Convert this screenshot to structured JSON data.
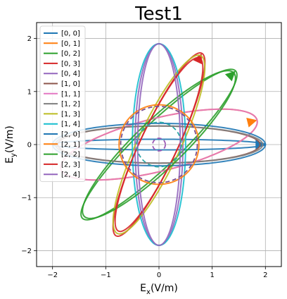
{
  "chart_data": {
    "type": "line",
    "title": "Test1",
    "xlabel": {
      "base": "E",
      "sub": "x",
      "unit": "(V/m)"
    },
    "ylabel": {
      "base": "E",
      "sub": "y",
      "unit": "(V/m)"
    },
    "xlim": [
      -2.3,
      2.3
    ],
    "ylim": [
      -2.3,
      2.3
    ],
    "xticks": [
      -2,
      -1,
      0,
      1,
      2
    ],
    "yticks": [
      -2,
      -1,
      0,
      1,
      2
    ],
    "grid": true,
    "legend_position": "upper-left",
    "series": [
      {
        "name": "[0, 0]",
        "color": "#1f77b4",
        "a": 2.0,
        "b": 0.1,
        "theta_deg": 0,
        "style": "solid",
        "arrow": true
      },
      {
        "name": "[0, 1]",
        "color": "#ff7f0e",
        "a": 1.9,
        "b": 0.5,
        "theta_deg": 14,
        "style": "solid",
        "arrow": true
      },
      {
        "name": "[0, 2]",
        "color": "#2ca02c",
        "a": 2.0,
        "b": 0.4,
        "theta_deg": 44,
        "style": "solid",
        "arrow": true
      },
      {
        "name": "[0, 3]",
        "color": "#d62728",
        "a": 1.9,
        "b": 0.35,
        "theta_deg": 65,
        "style": "solid",
        "arrow": true
      },
      {
        "name": "[0, 4]",
        "color": "#9467bd",
        "a": 1.9,
        "b": 0.45,
        "theta_deg": 90,
        "style": "solid",
        "arrow": false
      },
      {
        "name": "[1, 0]",
        "color": "#8c564b",
        "a": 1.9,
        "b": 0.35,
        "theta_deg": 0,
        "style": "solid",
        "arrow": false
      },
      {
        "name": "[1, 1]",
        "color": "#e377c2",
        "a": 1.9,
        "b": 0.5,
        "theta_deg": 14,
        "style": "solid",
        "arrow": false
      },
      {
        "name": "[1, 2]",
        "color": "#7f7f7f",
        "a": 1.95,
        "b": 0.35,
        "theta_deg": 0,
        "style": "solid",
        "arrow": false
      },
      {
        "name": "[1, 3]",
        "color": "#bcbd22",
        "a": 1.85,
        "b": 0.4,
        "theta_deg": 65,
        "style": "solid",
        "arrow": false
      },
      {
        "name": "[1, 4]",
        "color": "#17becf",
        "a": 1.9,
        "b": 0.5,
        "theta_deg": 90,
        "style": "solid",
        "arrow": false
      },
      {
        "name": "[2, 0]",
        "color": "#1f77b4",
        "a": 2.0,
        "b": 0.4,
        "theta_deg": 0,
        "style": "solid",
        "arrow": false
      },
      {
        "name": "[2, 1]",
        "color": "#ff7f0e",
        "a": 0.75,
        "b": 0.75,
        "theta_deg": 0,
        "style": "solid",
        "arrow": false
      },
      {
        "name": "[2, 2]",
        "color": "#2ca02c",
        "a": 1.95,
        "b": 0.45,
        "theta_deg": 44,
        "style": "solid",
        "arrow": false
      },
      {
        "name": "[2, 3]",
        "color": "#d62728",
        "a": 1.8,
        "b": 0.35,
        "theta_deg": 65,
        "style": "solid",
        "arrow": false
      },
      {
        "name": "[2, 4]",
        "color": "#9467bd",
        "a": 1.9,
        "b": 0.4,
        "theta_deg": 90,
        "style": "solid",
        "arrow": false
      }
    ],
    "extra_curves": [
      {
        "color": "#7b4f8f",
        "r": 0.72,
        "style": "dashed"
      },
      {
        "color": "#2ca6a4",
        "r": 0.42,
        "style": "dashed"
      },
      {
        "color": "#9b59b6",
        "r": 0.12,
        "style": "dashed"
      }
    ]
  }
}
